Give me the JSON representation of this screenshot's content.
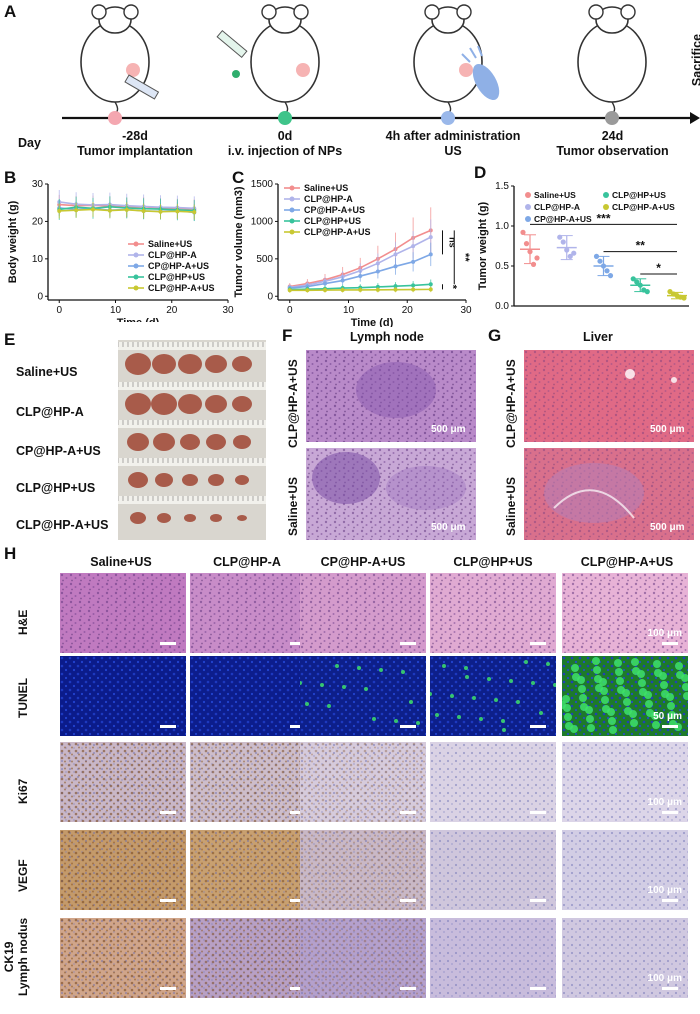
{
  "panel_a": {
    "label": "A",
    "day_label": "Day",
    "events": [
      {
        "day": "-28d",
        "text": "Tumor implantation"
      },
      {
        "day": "0d",
        "text": "i.v. injection of NPs"
      },
      {
        "day": "4h after administration",
        "text": "US"
      },
      {
        "day": "24d",
        "text": "Tumor observation"
      }
    ],
    "sacrifice": "Sacrifice",
    "marker_colors": [
      "#f4a7b0",
      "#3fc48a",
      "#9ab8ea",
      "#9a9a9a"
    ]
  },
  "groups": [
    "Saline+US",
    "CLP@HP-A",
    "CP@HP-A+US",
    "CLP@HP+US",
    "CLP@HP-A+US"
  ],
  "group_colors": [
    "#f28e8e",
    "#b0b4ea",
    "#7ea8e6",
    "#38c39c",
    "#c8c832"
  ],
  "panel_b": {
    "label": "B"
  },
  "panel_c": {
    "label": "C",
    "significance": [
      "ns",
      "**",
      "*"
    ]
  },
  "panel_d": {
    "label": "D",
    "significance": [
      "***",
      "**",
      "*"
    ]
  },
  "panel_e": {
    "label": "E",
    "rows": [
      "Saline+US",
      "CLP@HP-A",
      "CP@HP-A+US",
      "CLP@HP+US",
      "CLP@HP-A+US"
    ]
  },
  "panel_f": {
    "label": "F",
    "title": "Lymph node",
    "rows": [
      "CLP@HP-A+US",
      "Saline+US"
    ],
    "scale": "500 μm"
  },
  "panel_g": {
    "label": "G",
    "title": "Liver",
    "rows": [
      "CLP@HP-A+US",
      "Saline+US"
    ],
    "scale": "500 μm"
  },
  "panel_h": {
    "label": "H",
    "columns": [
      "Saline+US",
      "CLP@HP-A",
      "CP@HP-A+US",
      "CLP@HP+US",
      "CLP@HP-A+US"
    ],
    "rows": [
      "H&E",
      "TUNEL",
      "Ki67",
      "VEGF",
      "CK19 Lymph nodus"
    ],
    "row_line1": [
      "H&E",
      "TUNEL",
      "Ki67",
      "VEGF",
      "CK19"
    ],
    "row_line2": [
      "",
      "",
      "",
      "",
      "Lymph nodus"
    ],
    "scales": [
      "100 μm",
      "50 μm",
      "100 μm",
      "100 μm",
      "100 μm"
    ]
  },
  "chart_data": [
    {
      "type": "line",
      "panel": "B",
      "xlabel": "Time (d)",
      "ylabel": "Body weight (g)",
      "xlim": [
        -2,
        30
      ],
      "ylim": [
        -1,
        30
      ],
      "xticks": [
        0,
        10,
        20,
        30
      ],
      "yticks": [
        0,
        10,
        20,
        30
      ],
      "x": [
        0,
        3,
        6,
        9,
        12,
        15,
        18,
        21,
        24
      ],
      "series": [
        {
          "name": "Saline+US",
          "values": [
            24.5,
            24.2,
            24.3,
            24.1,
            23.8,
            23.9,
            23.6,
            23.5,
            23.3
          ]
        },
        {
          "name": "CLP@HP-A",
          "values": [
            25.2,
            24.6,
            24.4,
            24.5,
            24.2,
            24.0,
            23.8,
            23.7,
            23.5
          ]
        },
        {
          "name": "CP@HP-A+US",
          "values": [
            23.6,
            23.2,
            23.4,
            23.0,
            23.2,
            22.8,
            22.7,
            22.9,
            22.4
          ]
        },
        {
          "name": "CLP@HP+US",
          "values": [
            23.2,
            23.8,
            23.5,
            23.9,
            23.6,
            23.4,
            23.3,
            23.1,
            22.9
          ]
        },
        {
          "name": "CLP@HP-A+US",
          "values": [
            22.8,
            23.0,
            23.2,
            22.9,
            23.1,
            22.8,
            22.6,
            22.7,
            22.5
          ]
        }
      ],
      "legend": "bottom-right"
    },
    {
      "type": "line",
      "panel": "C",
      "xlabel": "Time (d)",
      "ylabel": "Tumor volume (mm3)",
      "xlim": [
        -2,
        30
      ],
      "ylim": [
        -50,
        1500
      ],
      "xticks": [
        0,
        10,
        20,
        30
      ],
      "yticks": [
        0,
        500,
        1000,
        1500
      ],
      "x": [
        0,
        3,
        6,
        9,
        12,
        15,
        18,
        21,
        24
      ],
      "series": [
        {
          "name": "Saline+US",
          "values": [
            130,
            170,
            220,
            290,
            380,
            500,
            630,
            780,
            880
          ]
        },
        {
          "name": "CLP@HP-A",
          "values": [
            120,
            150,
            200,
            260,
            340,
            440,
            560,
            670,
            790
          ]
        },
        {
          "name": "CP@HP-A+US",
          "values": [
            110,
            130,
            170,
            210,
            270,
            330,
            400,
            460,
            560
          ]
        },
        {
          "name": "CLP@HP+US",
          "values": [
            90,
            95,
            100,
            110,
            115,
            125,
            135,
            145,
            160
          ]
        },
        {
          "name": "CLP@HP-A+US",
          "values": [
            80,
            80,
            82,
            84,
            85,
            86,
            88,
            90,
            92
          ]
        }
      ],
      "legend": "top-left"
    },
    {
      "type": "scatter",
      "panel": "D",
      "ylabel": "Tumor weight (g)",
      "ylim": [
        0,
        1.5
      ],
      "yticks": [
        0.0,
        0.5,
        1.0,
        1.5
      ],
      "categories": [
        "Saline+US",
        "CLP@HP-A",
        "CP@HP-A+US",
        "CLP@HP+US",
        "CLP@HP-A+US"
      ],
      "means": [
        0.71,
        0.73,
        0.5,
        0.26,
        0.13
      ],
      "sd": [
        0.18,
        0.15,
        0.12,
        0.08,
        0.04
      ],
      "points": [
        [
          0.92,
          0.78,
          0.68,
          0.52,
          0.6
        ],
        [
          0.86,
          0.8,
          0.7,
          0.62,
          0.66
        ],
        [
          0.62,
          0.56,
          0.5,
          0.44,
          0.38
        ],
        [
          0.34,
          0.3,
          0.26,
          0.2,
          0.18
        ],
        [
          0.18,
          0.15,
          0.13,
          0.11,
          0.1
        ]
      ],
      "legend": "top"
    }
  ]
}
